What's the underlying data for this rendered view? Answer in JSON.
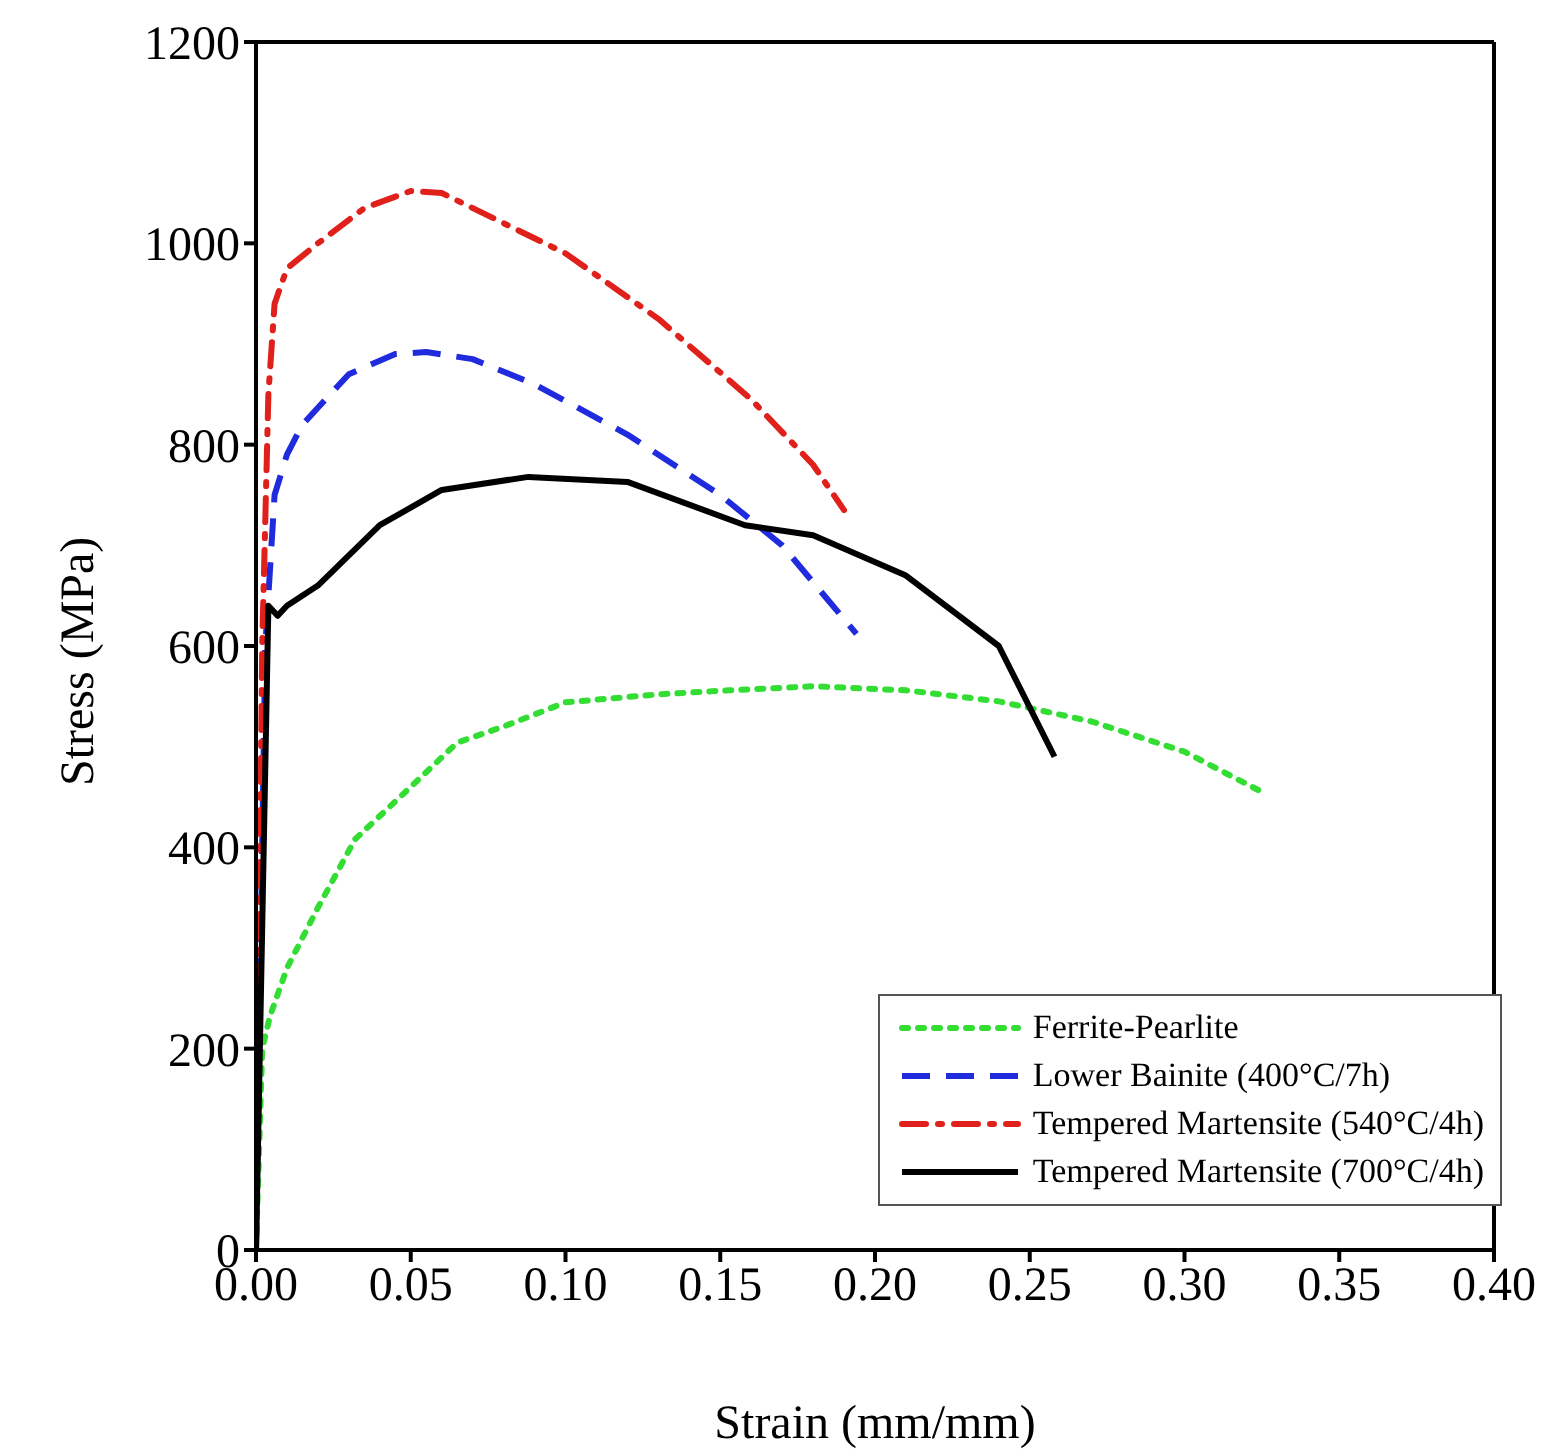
{
  "chart_data": {
    "type": "line",
    "xlabel": "Strain (mm/mm)",
    "ylabel": "Stress (MPa)",
    "xlim": [
      0,
      0.4
    ],
    "xticks": [
      {
        "value": 0,
        "label": "0.00"
      },
      {
        "value": 0.05,
        "label": "0.05"
      },
      {
        "value": 0.1,
        "label": "0.10"
      },
      {
        "value": 0.15,
        "label": "0.15"
      },
      {
        "value": 0.2,
        "label": "0.20"
      },
      {
        "value": 0.25,
        "label": "0.25"
      },
      {
        "value": 0.3,
        "label": "0.30"
      },
      {
        "value": 0.35,
        "label": "0.35"
      },
      {
        "value": 0.4,
        "label": "0.40"
      }
    ],
    "ylim": [
      0,
      1200
    ],
    "yticks": [
      0,
      200,
      400,
      600,
      800,
      1000,
      1200
    ],
    "grid": false,
    "legend": "bottom right",
    "marker": "none",
    "series": [
      {
        "name": "Ferrite-Pearlite",
        "color": "#33dd33",
        "line_style": "dotted",
        "x": [
          0,
          0.002,
          0.0045,
          0.01,
          0.02,
          0.032,
          0.05,
          0.065,
          0.08,
          0.1,
          0.13,
          0.153,
          0.18,
          0.21,
          0.24,
          0.27,
          0.3,
          0.325
        ],
        "values": [
          0,
          200,
          232,
          280,
          340,
          408,
          460,
          504,
          520,
          544,
          552,
          556,
          560,
          556,
          545,
          525,
          495,
          455
        ]
      },
      {
        "name": "Lower Bainite (400°C/7h)",
        "color": "#1f2bdd",
        "line_style": "dashed",
        "x": [
          0,
          0.003,
          0.006,
          0.01,
          0.015,
          0.03,
          0.045,
          0.055,
          0.07,
          0.09,
          0.12,
          0.15,
          0.17,
          0.194
        ],
        "values": [
          0,
          600,
          750,
          790,
          820,
          870,
          890,
          892,
          885,
          860,
          810,
          750,
          700,
          612
        ]
      },
      {
        "name": "Tempered Martensite (540°C/4h)",
        "color": "#e0201b",
        "line_style": "dashdot",
        "x": [
          0,
          0.002,
          0.004,
          0.006,
          0.01,
          0.02,
          0.035,
          0.05,
          0.06,
          0.08,
          0.1,
          0.13,
          0.16,
          0.18,
          0.19
        ],
        "values": [
          0,
          600,
          850,
          940,
          975,
          1000,
          1035,
          1052,
          1050,
          1020,
          990,
          925,
          845,
          780,
          735
        ]
      },
      {
        "name": "Tempered Martensite (700°C/4h)",
        "color": "#000000",
        "line_style": "solid",
        "x": [
          0,
          0.004,
          0.007,
          0.01,
          0.02,
          0.04,
          0.06,
          0.088,
          0.12,
          0.158,
          0.18,
          0.21,
          0.24,
          0.258
        ],
        "values": [
          0,
          640,
          630,
          640,
          660,
          720,
          755,
          768,
          763,
          720,
          710,
          670,
          600,
          490
        ]
      }
    ]
  }
}
